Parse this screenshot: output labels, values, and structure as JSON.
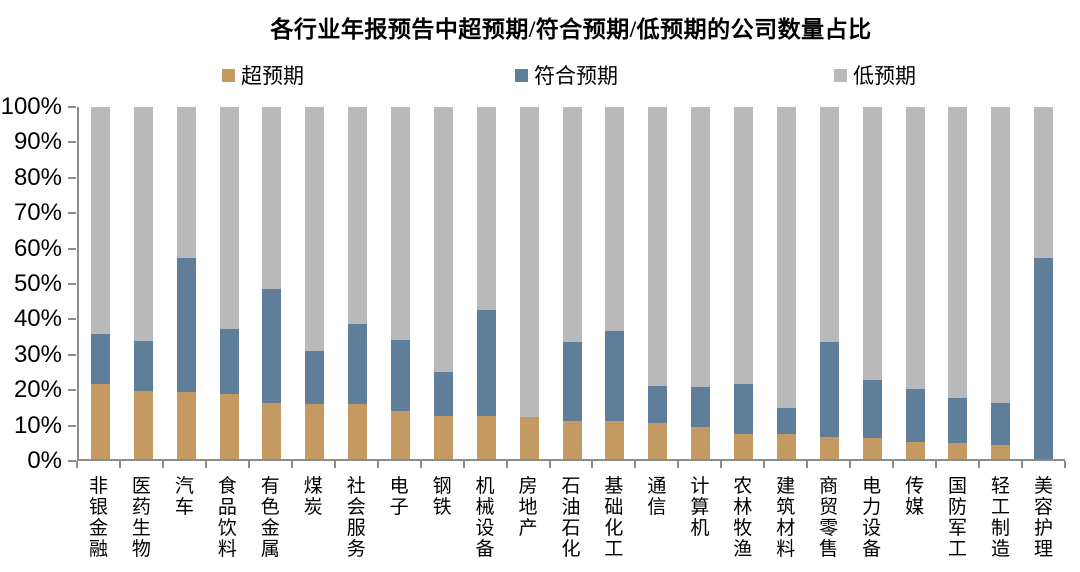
{
  "chart_data": {
    "type": "bar",
    "stacked": true,
    "stacked_total": 100,
    "title": "各行业年报预告中超预期/符合预期/低预期的公司数量占比",
    "legend_position": "top",
    "grid": false,
    "categories": [
      "非银金融",
      "医药生物",
      "汽车",
      "食品饮料",
      "有色金属",
      "煤炭",
      "社会服务",
      "电子",
      "钢铁",
      "机械设备",
      "房地产",
      "石油石化",
      "基础化工",
      "通信",
      "计算机",
      "农林牧渔",
      "建筑材料",
      "商贸零售",
      "电力设备",
      "传媒",
      "国防军工",
      "轻工制造",
      "美容护理"
    ],
    "series": [
      {
        "name": "超预期",
        "color": "#C49A62",
        "values": [
          21.3,
          19.3,
          19.0,
          18.4,
          16.0,
          15.5,
          15.5,
          13.5,
          12.3,
          12.1,
          11.8,
          10.9,
          10.9,
          10.2,
          9.2,
          7.0,
          7.0,
          6.3,
          6.0,
          4.8,
          4.6,
          4.0,
          0.0
        ]
      },
      {
        "name": "符合预期",
        "color": "#5F7E99",
        "values": [
          14.2,
          14.2,
          38.0,
          18.4,
          32.4,
          15.3,
          22.9,
          20.2,
          12.5,
          30.1,
          0.0,
          22.4,
          25.4,
          10.6,
          11.4,
          14.2,
          7.4,
          27.0,
          16.4,
          15.2,
          12.6,
          12.0,
          57.0
        ]
      },
      {
        "name": "低预期",
        "color": "#B9B9B9",
        "values": [
          64.5,
          66.5,
          43.0,
          63.2,
          51.6,
          69.2,
          61.6,
          66.3,
          75.2,
          57.8,
          88.2,
          66.7,
          63.7,
          79.2,
          79.4,
          78.8,
          85.6,
          66.7,
          77.6,
          80.0,
          82.8,
          84.0,
          43.0
        ]
      }
    ],
    "y_axis": {
      "min": 0,
      "max": 100,
      "ticks": [
        "0%",
        "10%",
        "20%",
        "30%",
        "40%",
        "50%",
        "60%",
        "70%",
        "80%",
        "90%",
        "100%"
      ]
    },
    "colors": {
      "axis": "#8c8c8c",
      "text": "#000000"
    }
  }
}
